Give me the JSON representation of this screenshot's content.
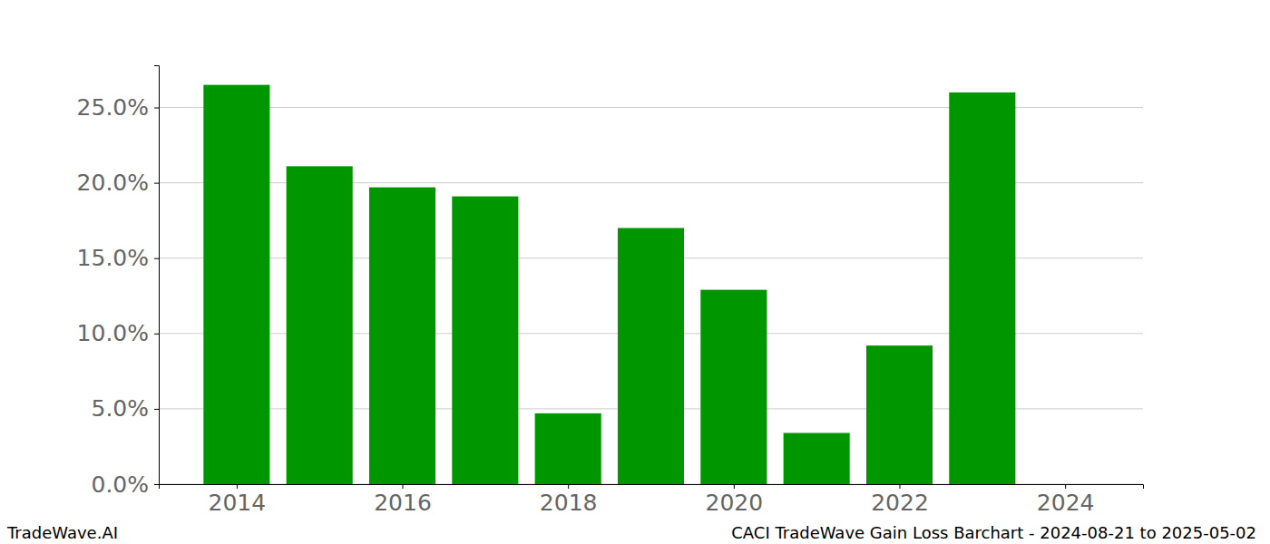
{
  "chart_data": {
    "type": "bar",
    "title": "CACI TradeWave Gain Loss Barchart - 2024-08-21 to 2025-05-02",
    "annotations": [
      "TradeWave.AI"
    ],
    "x": [
      2014,
      2015,
      2016,
      2017,
      2018,
      2019,
      2020,
      2021,
      2022,
      2023,
      2024
    ],
    "values": [
      26.5,
      21.1,
      19.7,
      19.1,
      4.7,
      17.0,
      12.9,
      3.4,
      9.2,
      26.0,
      0
    ],
    "color": "#009600",
    "xlim": [
      2013.06,
      2024.94
    ],
    "xticks": [
      2014,
      2016,
      2018,
      2020,
      2022,
      2024
    ],
    "ylim": [
      0,
      27.8
    ],
    "yticks": [
      {
        "value": 0,
        "label": "0.0%"
      },
      {
        "value": 5,
        "label": "5.0%"
      },
      {
        "value": 10,
        "label": "10.0%"
      },
      {
        "value": 15,
        "label": "15.0%"
      },
      {
        "value": 20,
        "label": "20.0%"
      },
      {
        "value": 25,
        "label": "25.0%"
      }
    ],
    "grid": true
  }
}
